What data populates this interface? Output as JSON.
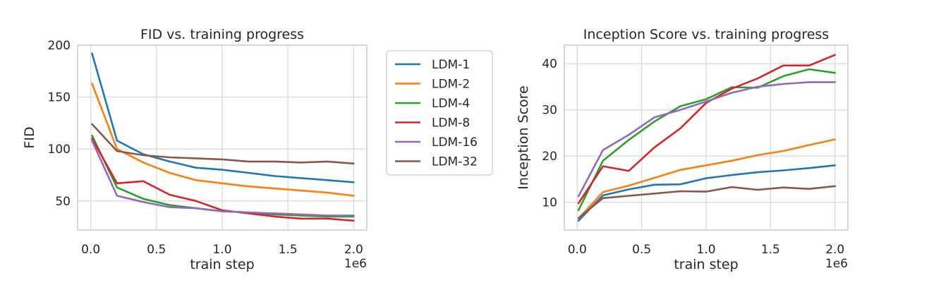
{
  "chart_data": [
    {
      "type": "line",
      "title": "FID vs. training progress",
      "xlabel": "train step",
      "ylabel": "FID",
      "x_offset_label": "1e6",
      "xlim": [
        -0.1,
        2.1
      ],
      "ylim": [
        22,
        200
      ],
      "xticks": [
        0.0,
        0.5,
        1.0,
        1.5,
        2.0
      ],
      "xtick_labels": [
        "0.0",
        "0.5",
        "1.0",
        "1.5",
        "2.0"
      ],
      "yticks": [
        50,
        100,
        150,
        200
      ],
      "ytick_labels": [
        "50",
        "100",
        "150",
        "200"
      ],
      "grid": true,
      "legend": "outside-right",
      "x": [
        0.01,
        0.2,
        0.4,
        0.6,
        0.8,
        1.0,
        1.2,
        1.4,
        1.6,
        1.8,
        2.0
      ],
      "series": [
        {
          "name": "LDM-1",
          "color": "#1f77b4",
          "values": [
            192,
            108,
            95,
            88,
            82,
            80,
            77,
            74,
            72,
            70,
            68
          ]
        },
        {
          "name": "LDM-2",
          "color": "#ff7f0e",
          "values": [
            163,
            100,
            87,
            77,
            70,
            67,
            64,
            62,
            60,
            58,
            55
          ]
        },
        {
          "name": "LDM-4",
          "color": "#2ca02c",
          "values": [
            113,
            63,
            52,
            46,
            43,
            40,
            39,
            37,
            36,
            35,
            35
          ]
        },
        {
          "name": "LDM-8",
          "color": "#d62728",
          "values": [
            110,
            67,
            69,
            56,
            50,
            41,
            38,
            35,
            33,
            33,
            31
          ]
        },
        {
          "name": "LDM-16",
          "color": "#9467bd",
          "values": [
            108,
            55,
            49,
            44,
            43,
            40,
            39,
            38,
            37,
            36,
            36
          ]
        },
        {
          "name": "LDM-32",
          "color": "#8c564b",
          "values": [
            124,
            98,
            94,
            92,
            91,
            90,
            88,
            88,
            87,
            88,
            86
          ]
        }
      ]
    },
    {
      "type": "line",
      "title": "Inception Score vs. training progress",
      "xlabel": "train step",
      "ylabel": "Inception Score",
      "x_offset_label": "1e6",
      "xlim": [
        -0.1,
        2.1
      ],
      "ylim": [
        4,
        44
      ],
      "xticks": [
        0.0,
        0.5,
        1.0,
        1.5,
        2.0
      ],
      "xtick_labels": [
        "0.0",
        "0.5",
        "1.0",
        "1.5",
        "2.0"
      ],
      "yticks": [
        10,
        20,
        30,
        40
      ],
      "ytick_labels": [
        "10",
        "20",
        "30",
        "40"
      ],
      "grid": true,
      "x": [
        0.01,
        0.2,
        0.4,
        0.6,
        0.8,
        1.0,
        1.2,
        1.4,
        1.6,
        1.8,
        2.0
      ],
      "series": [
        {
          "name": "LDM-1",
          "color": "#1f77b4",
          "values": [
            6.0,
            11.5,
            12.8,
            13.8,
            13.9,
            15.2,
            15.9,
            16.5,
            16.9,
            17.4,
            18.0
          ]
        },
        {
          "name": "LDM-2",
          "color": "#ff7f0e",
          "values": [
            6.5,
            12.2,
            13.6,
            15.3,
            17.0,
            18.0,
            19.0,
            20.2,
            21.1,
            22.4,
            23.6
          ]
        },
        {
          "name": "LDM-4",
          "color": "#2ca02c",
          "values": [
            8.3,
            19.0,
            23.5,
            27.5,
            30.8,
            32.3,
            34.9,
            34.8,
            37.3,
            38.8,
            38.0
          ]
        },
        {
          "name": "LDM-8",
          "color": "#d62728",
          "values": [
            9.8,
            17.8,
            16.8,
            21.9,
            26.0,
            31.5,
            34.6,
            36.8,
            39.6,
            39.6,
            41.9
          ]
        },
        {
          "name": "LDM-16",
          "color": "#9467bd",
          "values": [
            11.3,
            21.3,
            24.6,
            28.4,
            30.0,
            31.8,
            33.7,
            35.0,
            35.6,
            36.0,
            36.0
          ]
        },
        {
          "name": "LDM-32",
          "color": "#8c564b",
          "values": [
            6.6,
            10.9,
            11.4,
            11.9,
            12.4,
            12.3,
            13.3,
            12.7,
            13.2,
            12.9,
            13.5
          ]
        }
      ]
    }
  ]
}
